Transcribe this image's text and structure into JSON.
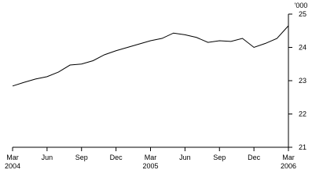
{
  "chart_data": {
    "type": "line",
    "y_unit": "'000",
    "categories": [
      "Mar 2004",
      null,
      null,
      "Jun",
      null,
      null,
      "Sep",
      null,
      null,
      "Dec",
      null,
      null,
      "Mar 2005",
      null,
      null,
      "Jun",
      null,
      null,
      "Sep",
      null,
      null,
      "Dec",
      null,
      null,
      "Mar 2006"
    ],
    "series": [
      {
        "color": "#000000",
        "values": [
          22.84,
          22.95,
          23.05,
          23.12,
          23.26,
          23.47,
          23.5,
          23.6,
          23.78,
          23.9,
          24.0,
          24.1,
          24.2,
          24.27,
          24.43,
          24.38,
          24.3,
          24.15,
          24.2,
          24.18,
          24.27,
          24.0,
          24.12,
          24.27,
          24.65
        ]
      }
    ],
    "ylim": [
      21,
      25
    ],
    "yticks": [
      21,
      22,
      23,
      24,
      25
    ],
    "grid": false
  }
}
